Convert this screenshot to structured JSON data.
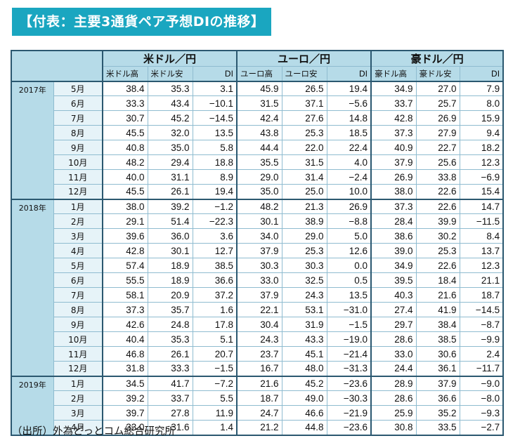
{
  "title": "【付表：主要3通貨ペア予想DIの推移】",
  "groups": [
    "米ドル／円",
    "ユーロ／円",
    "豪ドル／円"
  ],
  "subheaders": [
    [
      "米ドル高",
      "米ドル安",
      "DI"
    ],
    [
      "ユーロ高",
      "ユーロ安",
      "DI"
    ],
    [
      "豪ドル高",
      "豪ドル安",
      "DI"
    ]
  ],
  "years": [
    {
      "label": "2017年",
      "rows": [
        {
          "month": "5月",
          "values": [
            "38.4",
            "35.3",
            "3.1",
            "45.9",
            "26.5",
            "19.4",
            "34.9",
            "27.0",
            "7.9"
          ]
        },
        {
          "month": "6月",
          "values": [
            "33.3",
            "43.4",
            "−10.1",
            "31.5",
            "37.1",
            "−5.6",
            "33.7",
            "25.7",
            "8.0"
          ]
        },
        {
          "month": "7月",
          "values": [
            "30.7",
            "45.2",
            "−14.5",
            "42.4",
            "27.6",
            "14.8",
            "42.8",
            "26.9",
            "15.9"
          ]
        },
        {
          "month": "8月",
          "values": [
            "45.5",
            "32.0",
            "13.5",
            "43.8",
            "25.3",
            "18.5",
            "37.3",
            "27.9",
            "9.4"
          ]
        },
        {
          "month": "9月",
          "values": [
            "40.8",
            "35.0",
            "5.8",
            "44.4",
            "22.0",
            "22.4",
            "40.9",
            "22.7",
            "18.2"
          ]
        },
        {
          "month": "10月",
          "values": [
            "48.2",
            "29.4",
            "18.8",
            "35.5",
            "31.5",
            "4.0",
            "37.9",
            "25.6",
            "12.3"
          ]
        },
        {
          "month": "11月",
          "values": [
            "40.0",
            "31.1",
            "8.9",
            "29.0",
            "31.4",
            "−2.4",
            "26.9",
            "33.8",
            "−6.9"
          ]
        },
        {
          "month": "12月",
          "values": [
            "45.5",
            "26.1",
            "19.4",
            "35.0",
            "25.0",
            "10.0",
            "38.0",
            "22.6",
            "15.4"
          ]
        }
      ]
    },
    {
      "label": "2018年",
      "rows": [
        {
          "month": "1月",
          "values": [
            "38.0",
            "39.2",
            "−1.2",
            "48.2",
            "21.3",
            "26.9",
            "37.3",
            "22.6",
            "14.7"
          ]
        },
        {
          "month": "2月",
          "values": [
            "29.1",
            "51.4",
            "−22.3",
            "30.1",
            "38.9",
            "−8.8",
            "28.4",
            "39.9",
            "−11.5"
          ]
        },
        {
          "month": "3月",
          "values": [
            "39.6",
            "36.0",
            "3.6",
            "34.0",
            "29.0",
            "5.0",
            "38.6",
            "30.2",
            "8.4"
          ]
        },
        {
          "month": "4月",
          "values": [
            "42.8",
            "30.1",
            "12.7",
            "37.9",
            "25.3",
            "12.6",
            "39.0",
            "25.3",
            "13.7"
          ]
        },
        {
          "month": "5月",
          "values": [
            "57.4",
            "18.9",
            "38.5",
            "30.3",
            "30.3",
            "0.0",
            "34.9",
            "22.6",
            "12.3"
          ]
        },
        {
          "month": "6月",
          "values": [
            "55.5",
            "18.9",
            "36.6",
            "33.0",
            "32.5",
            "0.5",
            "39.5",
            "18.4",
            "21.1"
          ]
        },
        {
          "month": "7月",
          "values": [
            "58.1",
            "20.9",
            "37.2",
            "37.9",
            "24.3",
            "13.5",
            "40.3",
            "21.6",
            "18.7"
          ]
        },
        {
          "month": "8月",
          "values": [
            "37.3",
            "35.7",
            "1.6",
            "22.1",
            "53.1",
            "−31.0",
            "27.4",
            "41.9",
            "−14.5"
          ]
        },
        {
          "month": "9月",
          "values": [
            "42.6",
            "24.8",
            "17.8",
            "30.4",
            "31.9",
            "−1.5",
            "29.7",
            "38.4",
            "−8.7"
          ]
        },
        {
          "month": "10月",
          "values": [
            "40.4",
            "35.3",
            "5.1",
            "24.3",
            "43.3",
            "−19.0",
            "28.6",
            "38.5",
            "−9.9"
          ]
        },
        {
          "month": "11月",
          "values": [
            "46.8",
            "26.1",
            "20.7",
            "23.7",
            "45.1",
            "−21.4",
            "33.0",
            "30.6",
            "2.4"
          ]
        },
        {
          "month": "12月",
          "values": [
            "31.8",
            "33.3",
            "−1.5",
            "16.7",
            "48.0",
            "−31.3",
            "24.4",
            "36.1",
            "−11.7"
          ]
        }
      ]
    },
    {
      "label": "2019年",
      "rows": [
        {
          "month": "1月",
          "values": [
            "34.5",
            "41.7",
            "−7.2",
            "21.6",
            "45.2",
            "−23.6",
            "28.9",
            "37.9",
            "−9.0"
          ]
        },
        {
          "month": "2月",
          "values": [
            "39.2",
            "33.7",
            "5.5",
            "18.7",
            "49.0",
            "−30.3",
            "28.6",
            "36.6",
            "−8.0"
          ]
        },
        {
          "month": "3月",
          "values": [
            "39.7",
            "27.8",
            "11.9",
            "24.7",
            "46.6",
            "−21.9",
            "25.9",
            "35.2",
            "−9.3"
          ]
        },
        {
          "month": "4月",
          "values": [
            "33.0",
            "31.6",
            "1.4",
            "21.2",
            "44.8",
            "−23.6",
            "30.8",
            "33.5",
            "−2.7"
          ]
        }
      ]
    }
  ],
  "source": "（出所）外為どっとコム総合研究所",
  "colors": {
    "title_bg": "#1aa6c0",
    "header_bg": "#b6dbe8",
    "month_bg": "#e6f3f8",
    "border_dark": "#2b5870"
  }
}
